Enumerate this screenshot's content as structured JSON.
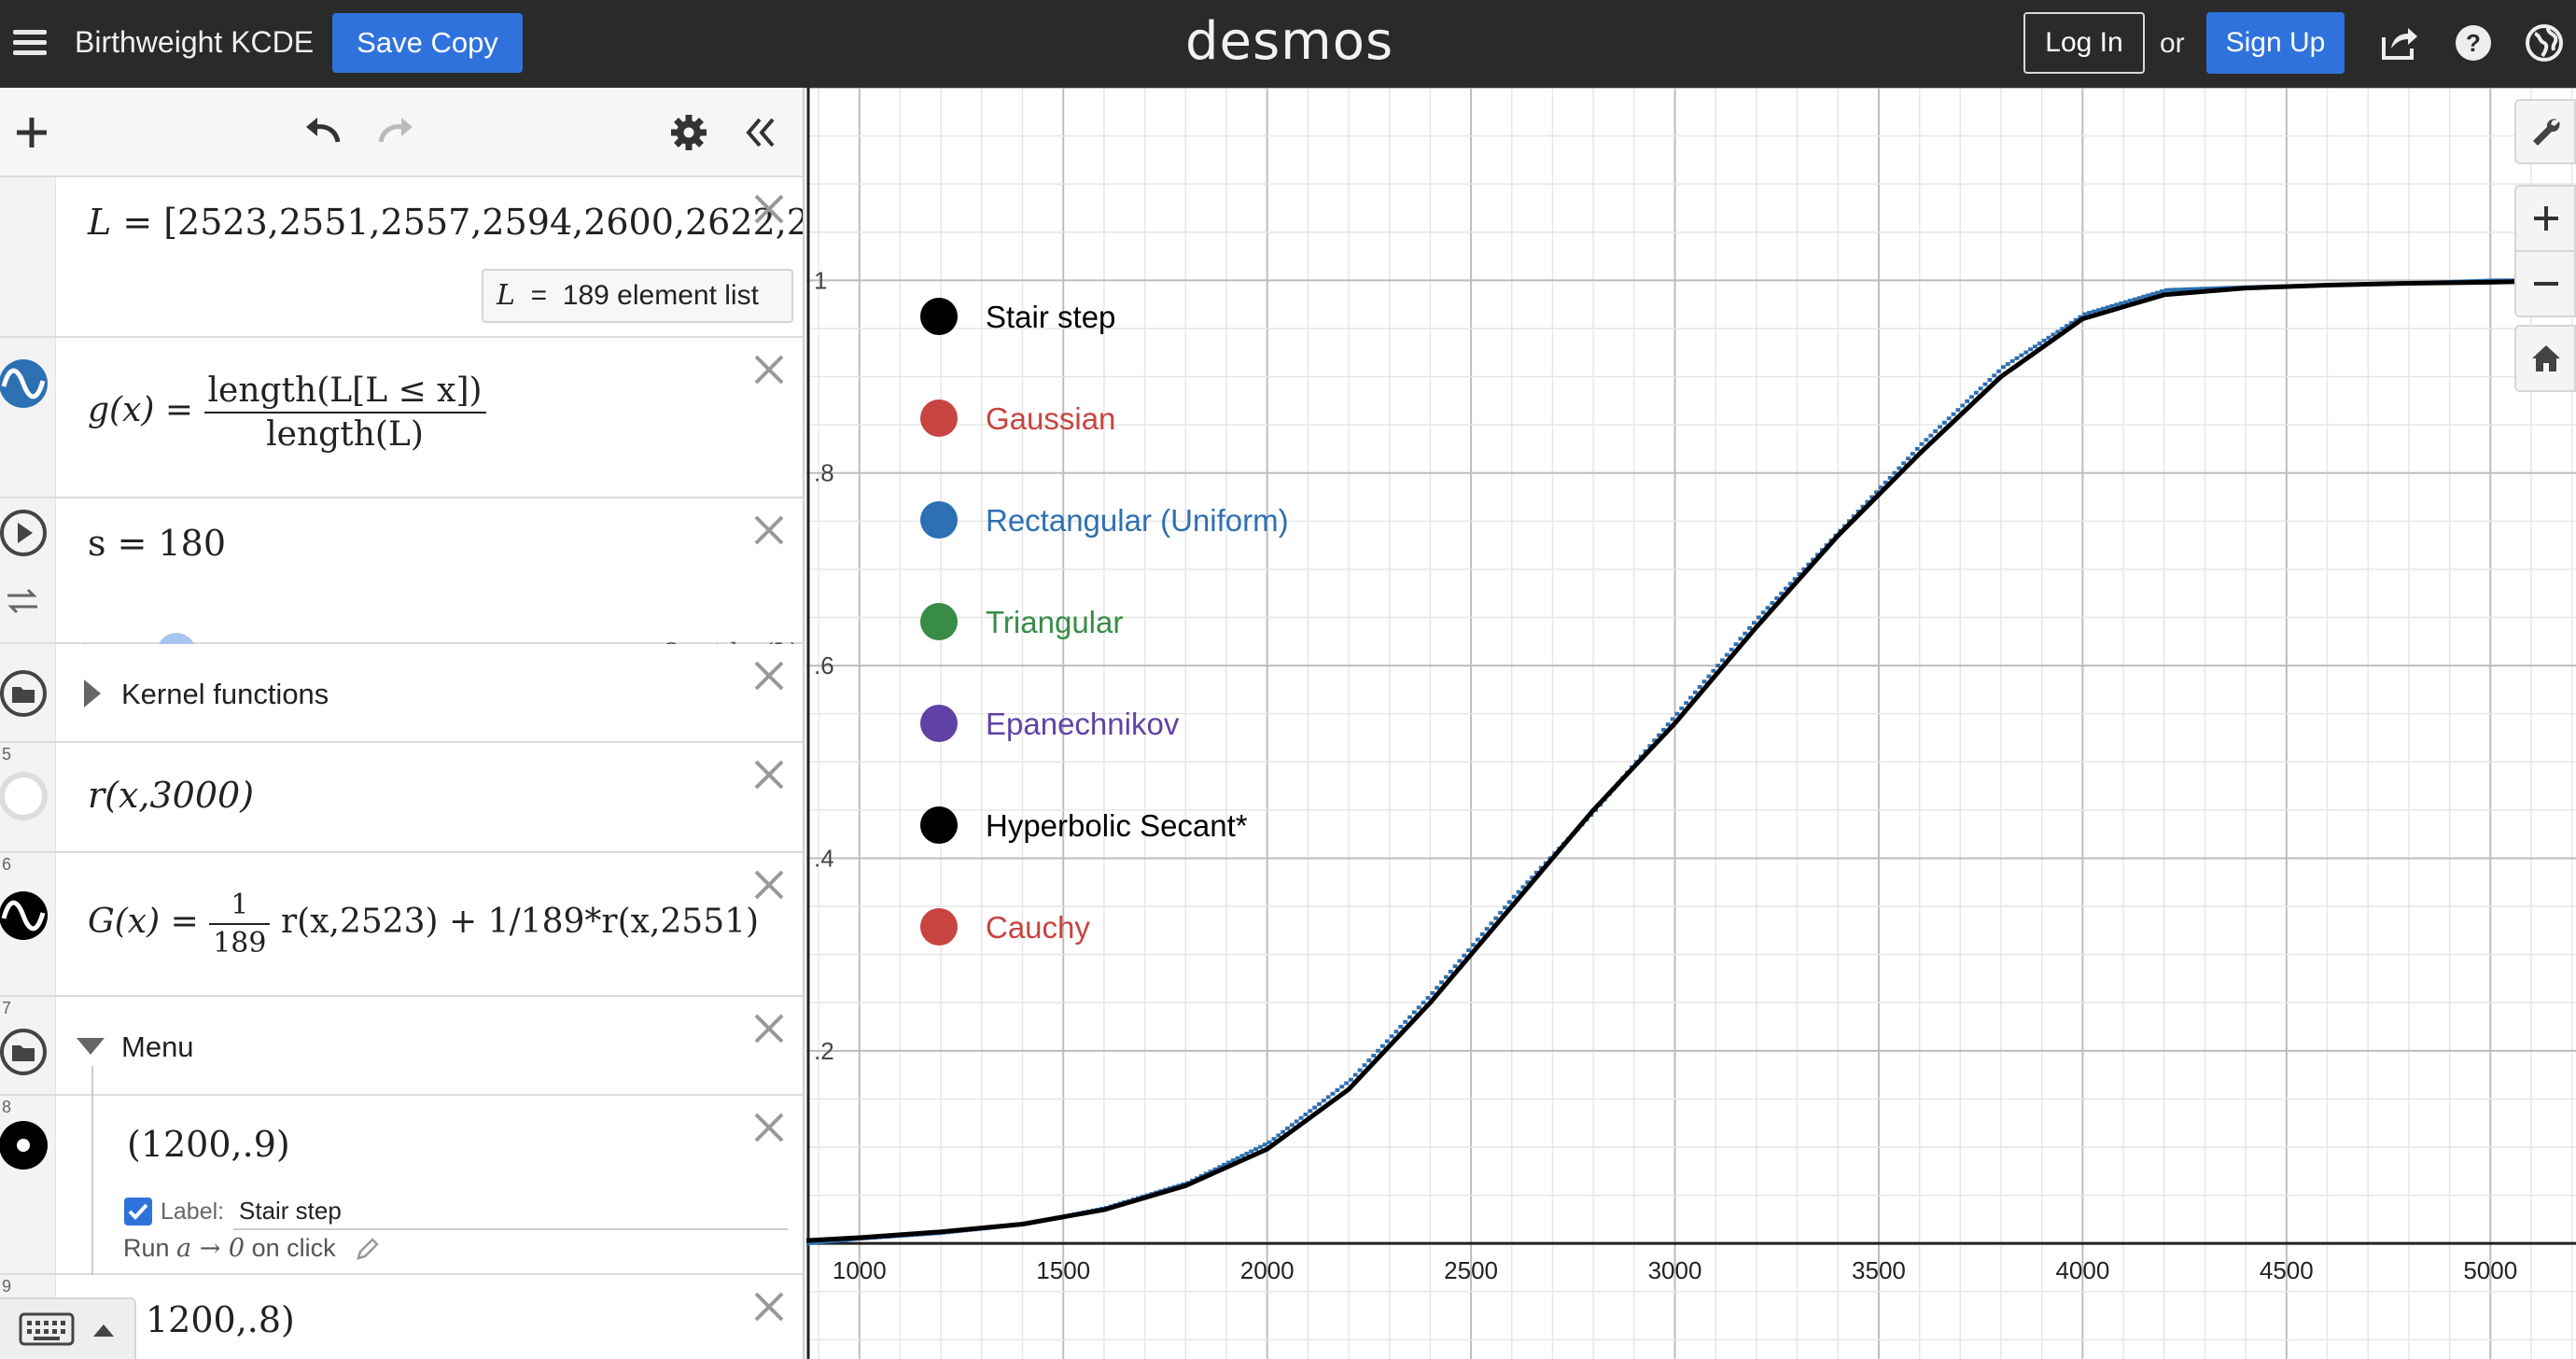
{
  "header": {
    "doc_title": "Birthweight KCDE",
    "save_copy_label": "Save Copy",
    "logo_text": "desmos",
    "login_label": "Log In",
    "or_text": "or",
    "signup_label": "Sign Up"
  },
  "expressions": {
    "e1": {
      "lhs": "L",
      "rhs": "[2523,2551,2557,2594,2600,2622,2",
      "result_var": "L",
      "result_text": "189 element list"
    },
    "e2": {
      "lhs": "g(x)",
      "num": "length(L[L ≤ x])",
      "den": "length(L)"
    },
    "e3": {
      "text": "s = 180",
      "slider_min": "0",
      "slider_max": "3 · stdev(L)",
      "value": 180,
      "max_value": 1700
    },
    "e4": {
      "folder_label": "Kernel functions"
    },
    "e5": {
      "index": "5",
      "text": "r(x,3000)"
    },
    "e6": {
      "index": "6",
      "lhs": "G(x) =",
      "num": "1",
      "den": "189",
      "rest": "r(x,2523) + 1/189*r(x,2551)"
    },
    "e7": {
      "index": "7",
      "folder_label": "Menu"
    },
    "e8": {
      "index": "8",
      "text": "(1200,.9)",
      "label_caption": "Label:",
      "label_value": "Stair step",
      "run_prefix": "Run",
      "run_action": "a → 0",
      "run_suffix": "on click"
    },
    "e9": {
      "index": "9",
      "text": "1200,.8)"
    }
  },
  "graph": {
    "legend": [
      {
        "label": "Stair step",
        "color": "#000000",
        "text_color": "#000000"
      },
      {
        "label": "Gaussian",
        "color": "#c74440",
        "text_color": "#c74440"
      },
      {
        "label": "Rectangular (Uniform)",
        "color": "#2d70b3",
        "text_color": "#2d70b3"
      },
      {
        "label": "Triangular",
        "color": "#388c46",
        "text_color": "#388c46"
      },
      {
        "label": "Epanechnikov",
        "color": "#6042a6",
        "text_color": "#6042a6"
      },
      {
        "label": "Hyperbolic Secant*",
        "color": "#000000",
        "text_color": "#000000"
      },
      {
        "label": "Cauchy",
        "color": "#c74440",
        "text_color": "#c74440"
      }
    ],
    "x_ticks": [
      "1000",
      "1500",
      "2000",
      "2500",
      "3000",
      "3500",
      "4000",
      "4500",
      "5000"
    ],
    "y_ticks": [
      "0.2",
      "0.4",
      "0.6",
      "0.8",
      "1"
    ],
    "xlim": [
      870,
      5210
    ],
    "ylim": [
      -0.12,
      1.2
    ],
    "curve_color": "#000000",
    "step_color": "#2d70b3"
  },
  "chart_data": {
    "type": "line",
    "title": "",
    "xlabel": "",
    "ylabel": "",
    "xlim": [
      870,
      5210
    ],
    "ylim": [
      -0.12,
      1.2
    ],
    "grid": true,
    "legend": "top-left",
    "series": [
      {
        "name": "Hyperbolic Secant*",
        "color": "#000000",
        "x": [
          870,
          1000,
          1200,
          1400,
          1600,
          1800,
          2000,
          2200,
          2400,
          2600,
          2800,
          3000,
          3200,
          3400,
          3600,
          3800,
          4000,
          4200,
          4400,
          4600,
          4800,
          5000,
          5210
        ],
        "y": [
          0.003,
          0.006,
          0.012,
          0.02,
          0.035,
          0.06,
          0.098,
          0.16,
          0.25,
          0.35,
          0.45,
          0.54,
          0.64,
          0.735,
          0.82,
          0.9,
          0.96,
          0.985,
          0.992,
          0.995,
          0.997,
          0.998,
          1.0
        ]
      },
      {
        "name": "Stair step",
        "color": "#2d70b3",
        "x": [
          870,
          1000,
          1200,
          1400,
          1600,
          1800,
          2000,
          2200,
          2400,
          2600,
          2800,
          3000,
          3200,
          3400,
          3600,
          3800,
          4000,
          4200,
          4400,
          4600,
          4800,
          5000,
          5210
        ],
        "y": [
          0.0,
          0.005,
          0.011,
          0.02,
          0.037,
          0.063,
          0.105,
          0.17,
          0.26,
          0.36,
          0.45,
          0.55,
          0.65,
          0.74,
          0.83,
          0.91,
          0.965,
          0.99,
          0.993,
          0.995,
          0.997,
          1.0,
          1.0
        ]
      }
    ]
  }
}
